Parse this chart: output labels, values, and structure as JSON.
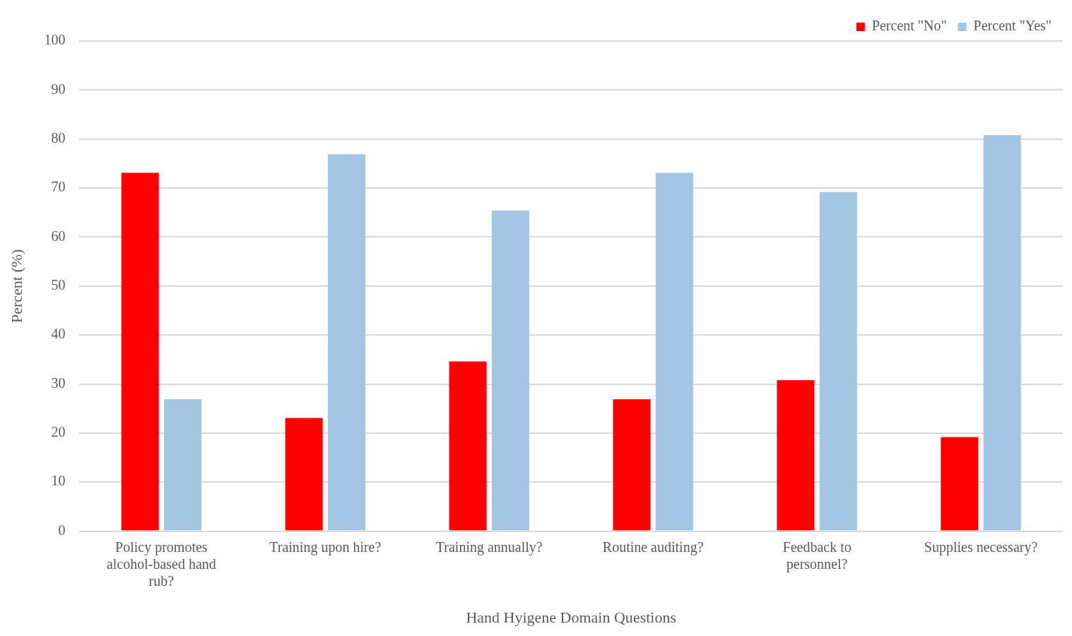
{
  "chart_data": {
    "type": "bar",
    "xlabel": "Hand Hyigene Domain Questions",
    "ylabel": "Percent (%)",
    "categories": [
      "Policy promotes alcohol-based hand rub?",
      "Training upon hire?",
      "Training annually?",
      "Routine auditing?",
      "Feedback to personnel?",
      "Supplies necessary?"
    ],
    "series": [
      {
        "name": "Percent \"No\"",
        "color": "#ff0000",
        "values": [
          73.1,
          23.1,
          34.6,
          26.9,
          30.8,
          19.2
        ]
      },
      {
        "name": "Percent \"Yes\"",
        "color": "#a3c4e2",
        "values": [
          26.9,
          76.9,
          65.4,
          73.1,
          69.2,
          80.8
        ]
      }
    ],
    "ylim": [
      0,
      100
    ],
    "yticks": [
      0,
      10,
      20,
      30,
      40,
      50,
      60,
      70,
      80,
      90,
      100
    ],
    "grid": "y",
    "legend": "top right"
  }
}
